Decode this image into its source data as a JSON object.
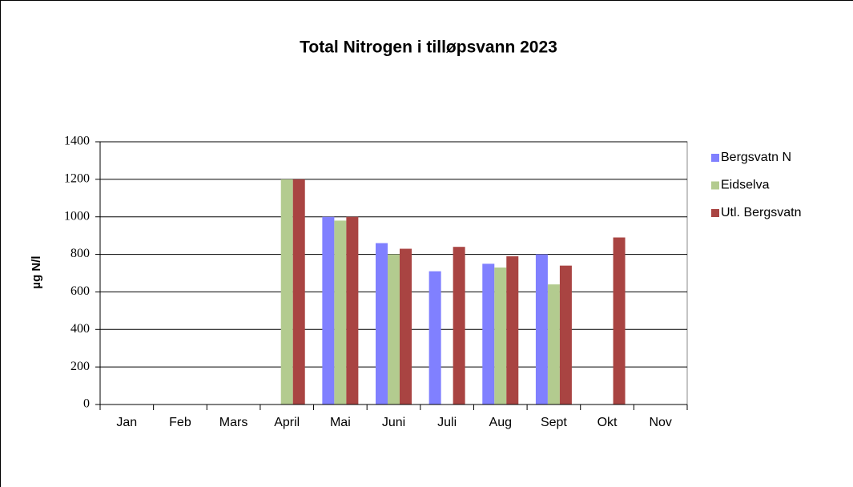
{
  "chart_data": {
    "type": "bar",
    "title": "Total Nitrogen i tilløpsvann 2023",
    "y_label": "µg N/l",
    "categories": [
      "Jan",
      "Feb",
      "Mars",
      "April",
      "Mai",
      "Juni",
      "Juli",
      "Aug",
      "Sept",
      "Okt",
      "Nov"
    ],
    "series": [
      {
        "name": "Bergsvatn N",
        "color": "#8080ff",
        "values": [
          null,
          null,
          null,
          null,
          1000,
          860,
          710,
          750,
          800,
          null,
          null
        ]
      },
      {
        "name": "Eidselva",
        "color": "#b3cb8f",
        "values": [
          null,
          null,
          null,
          1200,
          980,
          800,
          null,
          730,
          640,
          null,
          null
        ]
      },
      {
        "name": "Utl. Bergsvatn",
        "color": "#a94442",
        "values": [
          null,
          null,
          null,
          1200,
          1000,
          830,
          840,
          790,
          740,
          890,
          null
        ]
      }
    ],
    "ylim": [
      0,
      1400
    ],
    "yticks": [
      0,
      200,
      400,
      600,
      800,
      1000,
      1200,
      1400
    ],
    "grid": true,
    "legend": "right"
  }
}
